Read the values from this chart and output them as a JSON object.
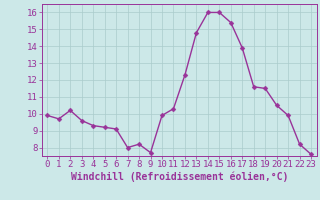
{
  "x": [
    0,
    1,
    2,
    3,
    4,
    5,
    6,
    7,
    8,
    9,
    10,
    11,
    12,
    13,
    14,
    15,
    16,
    17,
    18,
    19,
    20,
    21,
    22,
    23
  ],
  "y": [
    9.9,
    9.7,
    10.2,
    9.6,
    9.3,
    9.2,
    9.1,
    8.0,
    8.2,
    7.7,
    9.9,
    10.3,
    12.3,
    14.8,
    16.0,
    16.0,
    15.4,
    13.9,
    11.6,
    11.5,
    10.5,
    9.9,
    8.2,
    7.6
  ],
  "line_color": "#993399",
  "marker_color": "#993399",
  "bg_color": "#cce8e8",
  "grid_color": "#aacccc",
  "xlabel": "Windchill (Refroidissement éolien,°C)",
  "xlabel_color": "#993399",
  "tick_color": "#993399",
  "ylim": [
    7.5,
    16.5
  ],
  "xlim": [
    -0.5,
    23.5
  ],
  "yticks": [
    8,
    9,
    10,
    11,
    12,
    13,
    14,
    15,
    16
  ],
  "xticks": [
    0,
    1,
    2,
    3,
    4,
    5,
    6,
    7,
    8,
    9,
    10,
    11,
    12,
    13,
    14,
    15,
    16,
    17,
    18,
    19,
    20,
    21,
    22,
    23
  ],
  "marker_size": 2.5,
  "line_width": 1.0,
  "font_size": 6.5,
  "xlabel_fontsize": 7.0
}
